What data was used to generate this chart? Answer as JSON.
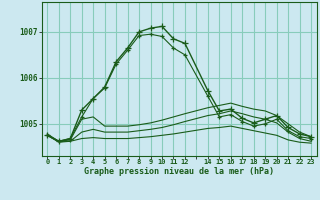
{
  "title": "Graphe pression niveau de la mer (hPa)",
  "bg_color": "#cce8f0",
  "grid_color": "#88ccbb",
  "line_color": "#1a5c1a",
  "ylim": [
    1004.3,
    1007.65
  ],
  "yticks": [
    1005,
    1006,
    1007
  ],
  "xlim": [
    -0.5,
    23.5
  ],
  "series": [
    {
      "x": [
        0,
        1,
        2,
        3,
        4,
        5,
        6,
        7,
        8,
        9,
        10,
        11,
        12,
        14,
        15,
        16,
        17,
        18,
        19,
        20,
        21,
        22,
        23
      ],
      "y": [
        1004.75,
        1004.62,
        1004.68,
        1005.3,
        1005.55,
        1005.8,
        1006.35,
        1006.65,
        1007.0,
        1007.08,
        1007.12,
        1006.85,
        1006.75,
        1005.72,
        1005.28,
        1005.32,
        1005.12,
        1005.02,
        1005.1,
        1005.18,
        1004.92,
        1004.78,
        1004.72
      ],
      "marker": "+",
      "lw": 1.0,
      "ls": "-",
      "ms": 4.0
    },
    {
      "x": [
        0,
        1,
        2,
        3,
        4,
        5,
        6,
        7,
        8,
        9,
        10,
        11,
        12,
        14,
        15,
        16,
        17,
        18,
        19,
        20,
        21,
        22,
        23
      ],
      "y": [
        1004.75,
        1004.62,
        1004.68,
        1005.15,
        1005.55,
        1005.78,
        1006.3,
        1006.6,
        1006.92,
        1006.95,
        1006.9,
        1006.65,
        1006.5,
        1005.6,
        1005.15,
        1005.2,
        1005.05,
        1004.95,
        1005.0,
        1005.1,
        1004.85,
        1004.72,
        1004.68
      ],
      "marker": "+",
      "lw": 0.8,
      "ls": "-",
      "ms": 3.5
    },
    {
      "x": [
        0,
        1,
        2,
        3,
        4,
        5,
        6,
        7,
        8,
        9,
        10,
        11,
        12,
        14,
        15,
        16,
        17,
        18,
        19,
        20,
        21,
        22,
        23
      ],
      "y": [
        1004.78,
        1004.62,
        1004.65,
        1005.1,
        1005.15,
        1004.95,
        1004.95,
        1004.95,
        1004.98,
        1005.02,
        1005.08,
        1005.15,
        1005.22,
        1005.35,
        1005.4,
        1005.45,
        1005.38,
        1005.32,
        1005.28,
        1005.18,
        1005.0,
        1004.82,
        1004.72
      ],
      "marker": null,
      "lw": 0.8,
      "ls": "-",
      "ms": 0
    },
    {
      "x": [
        0,
        1,
        2,
        3,
        4,
        5,
        6,
        7,
        8,
        9,
        10,
        11,
        12,
        14,
        15,
        16,
        17,
        18,
        19,
        20,
        21,
        22,
        23
      ],
      "y": [
        1004.75,
        1004.6,
        1004.62,
        1004.82,
        1004.88,
        1004.82,
        1004.82,
        1004.82,
        1004.85,
        1004.88,
        1004.92,
        1004.98,
        1005.05,
        1005.18,
        1005.22,
        1005.28,
        1005.22,
        1005.15,
        1005.1,
        1005.02,
        1004.82,
        1004.68,
        1004.62
      ],
      "marker": null,
      "lw": 0.8,
      "ls": "-",
      "ms": 0
    },
    {
      "x": [
        0,
        1,
        2,
        3,
        4,
        5,
        6,
        7,
        8,
        9,
        10,
        11,
        12,
        14,
        15,
        16,
        17,
        18,
        19,
        20,
        21,
        22,
        23
      ],
      "y": [
        1004.75,
        1004.62,
        1004.62,
        1004.68,
        1004.7,
        1004.68,
        1004.68,
        1004.68,
        1004.7,
        1004.72,
        1004.75,
        1004.78,
        1004.82,
        1004.9,
        1004.92,
        1004.95,
        1004.9,
        1004.85,
        1004.8,
        1004.75,
        1004.65,
        1004.6,
        1004.58
      ],
      "marker": null,
      "lw": 0.8,
      "ls": "-",
      "ms": 0
    }
  ],
  "xtick_labels": [
    "0",
    "1",
    "2",
    "3",
    "4",
    "5",
    "6",
    "7",
    "8",
    "9",
    "1011",
    "12",
    "",
    "1415",
    "1617",
    "1819",
    "2021",
    "2223"
  ]
}
